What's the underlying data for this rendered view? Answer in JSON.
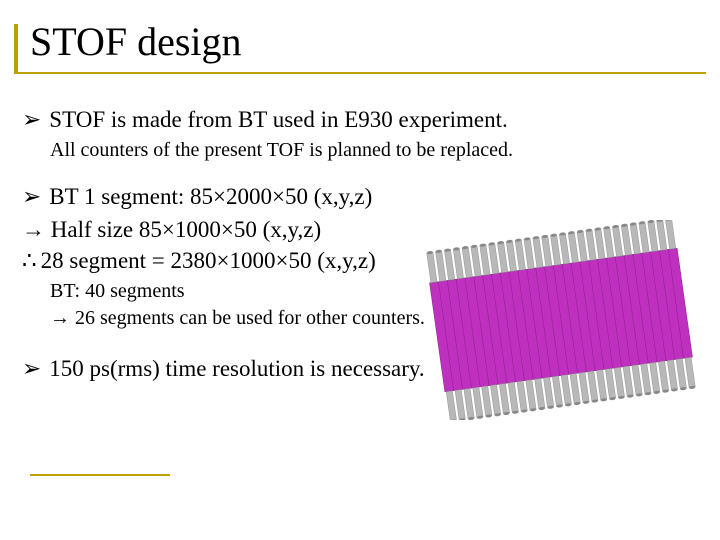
{
  "title": "STOF design",
  "bullets": {
    "b1": "STOF is made from BT  used in E930 experiment.",
    "b1_sub": "All counters of the present TOF is planned to be replaced.",
    "b2": "BT 1 segment: 85×2000×50 (x,y,z)",
    "b2_arrow": "→ Half size 85×1000×50 (x,y,z)",
    "b2_therefore": "28 segment = 2380×1000×50 (x,y,z)",
    "b2_sub1": "BT: 40 segments",
    "b2_sub2": "→ 26 segments can be used for other counters.",
    "b3": "150 ps(rms) time resolution is necessary."
  },
  "colors": {
    "accent": "#c0a000",
    "detector_fill": "#c030c0",
    "detector_tube": "#b8b8b8",
    "detector_tube_dark": "#888888"
  },
  "detector": {
    "segments": 28,
    "skew_deg": -8
  }
}
